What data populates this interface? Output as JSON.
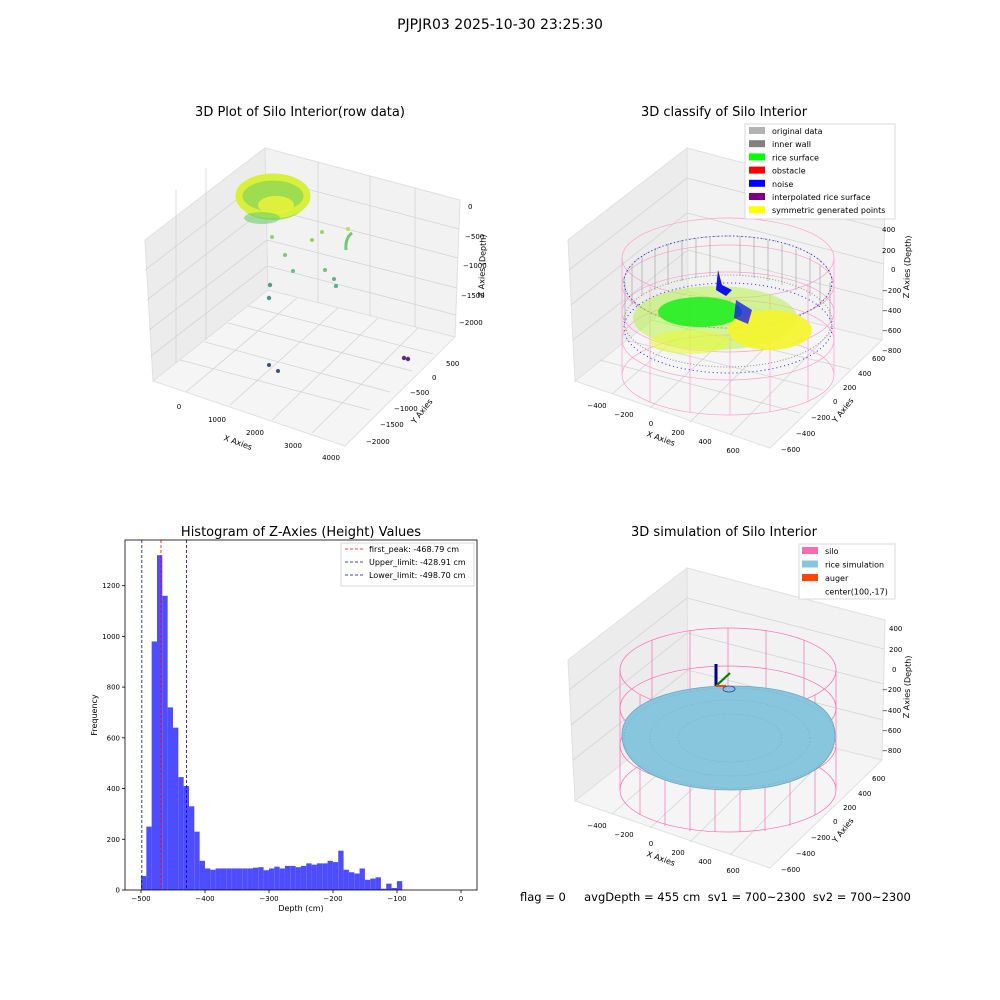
{
  "suptitle": "PJPJR03 2025-10-30 23:25:30",
  "status_line": "flag = 0     avgDepth = 455 cm  sv1 = 700~2300  sv2 = 700~2300",
  "colors": {
    "hist_bar": "#4d4dff",
    "first_peak_line": "#ff0000",
    "limit_lines": "#0000cc",
    "silo_wire": "#ff69b4",
    "rice_fill": "#87c6dd",
    "auger": "#ff4500",
    "pane_left": "#ececec",
    "pane_right": "#f2f2f2",
    "pane_floor": "#f5f5f5"
  },
  "chart_data": [
    {
      "id": "raw3d",
      "type": "scatter",
      "title": "3D Plot of Silo Interior(row data)",
      "xlabel": "X Axies",
      "ylabel": "Y Axies",
      "zlabel": "Z Axies (Depth)",
      "x_ticks": [
        "0",
        "1000",
        "2000",
        "3000",
        "4000"
      ],
      "y_ticks": [
        "500",
        "0",
        "−500",
        "−1000",
        "−1500",
        "−2000"
      ],
      "z_ticks": [
        "0",
        "−500",
        "−1000",
        "−1500",
        "−2000"
      ],
      "xlim": [
        -600,
        4300
      ],
      "ylim": [
        -2200,
        700
      ],
      "zlim": [
        -2200,
        100
      ]
    },
    {
      "id": "classify3d",
      "type": "scatter",
      "title": "3D classify of Silo Interior",
      "xlabel": "X Axies",
      "ylabel": "Y Axies",
      "zlabel": "Z Axies (Depth)",
      "x_ticks": [
        "−400",
        "−200",
        "0",
        "200",
        "400",
        "600"
      ],
      "y_ticks": [
        "600",
        "400",
        "200",
        "0",
        "−200",
        "−400",
        "−600"
      ],
      "z_ticks": [
        "400",
        "200",
        "0",
        "−200",
        "−400",
        "−600",
        "−800"
      ],
      "legend": [
        {
          "label": "original data",
          "color": "#b3b3b3"
        },
        {
          "label": "inner wall",
          "color": "#808080"
        },
        {
          "label": "rice surface",
          "color": "#00ff00"
        },
        {
          "label": "obstacle",
          "color": "#ff0000"
        },
        {
          "label": "noise",
          "color": "#0000ff"
        },
        {
          "label": "interpolated rice surface",
          "color": "#800080"
        },
        {
          "label": "symmetric generated points",
          "color": "#ffff00"
        }
      ]
    },
    {
      "id": "hist",
      "type": "bar",
      "title": "Histogram of Z-Axies (Height) Values",
      "xlabel": "Depth (cm)",
      "ylabel": "Frequency",
      "xlim": [
        -525,
        25
      ],
      "ylim": [
        0,
        1380
      ],
      "x_ticks": [
        -500,
        -400,
        -300,
        -200,
        -100,
        0
      ],
      "x_tick_labels": [
        "−500",
        "−400",
        "−300",
        "−200",
        "−100",
        "0"
      ],
      "y_ticks": [
        0,
        200,
        400,
        600,
        800,
        1000,
        1200
      ],
      "y_tick_labels": [
        "0",
        "200",
        "400",
        "600",
        "800",
        "1000",
        "1200"
      ],
      "bin_start": -500,
      "bin_width": 8.33,
      "values": [
        55,
        250,
        980,
        1320,
        1160,
        720,
        640,
        445,
        410,
        330,
        230,
        115,
        85,
        80,
        85,
        85,
        85,
        85,
        85,
        85,
        85,
        88,
        90,
        78,
        85,
        92,
        85,
        95,
        95,
        90,
        95,
        105,
        100,
        105,
        105,
        115,
        110,
        155,
        80,
        70,
        65,
        85,
        40,
        45,
        50,
        5,
        25,
        8,
        35
      ],
      "vlines": [
        {
          "name": "first_peak",
          "value": -468.79,
          "label": "first_peak: -468.79 cm",
          "color": "#ff0000"
        },
        {
          "name": "Upper_limit",
          "value": -428.91,
          "label": "Upper_limit: -428.91 cm",
          "color": "#0000cc"
        },
        {
          "name": "Lower_limit",
          "value": -498.7,
          "label": "Lower_limit: -498.70 cm",
          "color": "#0000cc"
        }
      ]
    },
    {
      "id": "sim3d",
      "type": "area",
      "title": "3D simulation of Silo Interior",
      "xlabel": "X Axies",
      "ylabel": "Y Axies",
      "zlabel": "Z Axies (Depth)",
      "x_ticks": [
        "−400",
        "−200",
        "0",
        "200",
        "400",
        "600"
      ],
      "y_ticks": [
        "600",
        "400",
        "200",
        "0",
        "−200",
        "−400",
        "−600"
      ],
      "z_ticks": [
        "400",
        "200",
        "0",
        "−200",
        "−400",
        "−600",
        "−800"
      ],
      "legend": [
        {
          "label": "silo",
          "color": "#ff69b4"
        },
        {
          "label": "rice simulation",
          "color": "#87c6dd"
        },
        {
          "label": "auger",
          "color": "#ff4500"
        },
        {
          "label": "center(100,-17)",
          "color": ""
        }
      ]
    }
  ]
}
